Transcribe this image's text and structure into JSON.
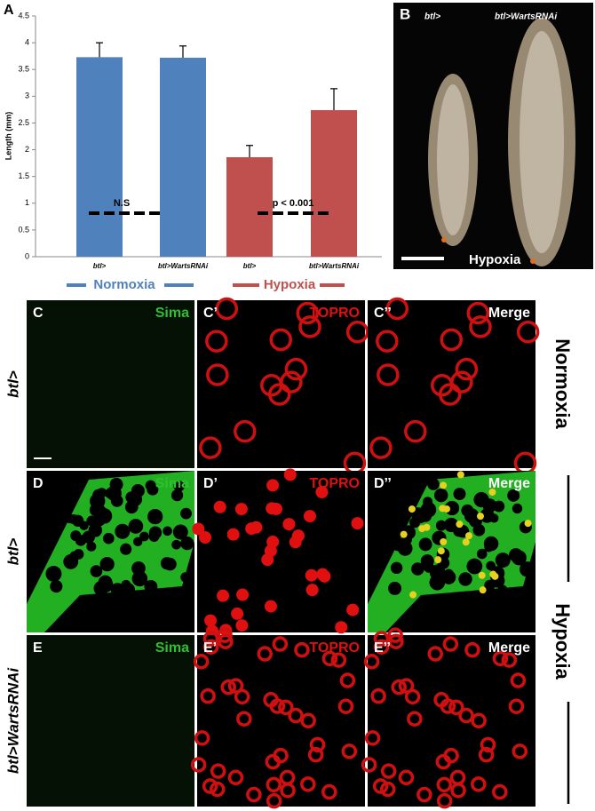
{
  "chart_data": {
    "type": "bar",
    "panel_label": "A",
    "y_label": "Length (mm)",
    "categories": [
      "btl>",
      "btl>WartsRNAi",
      "btl>",
      "btl>WartsRNAi"
    ],
    "values": [
      3.73,
      3.72,
      1.86,
      2.74
    ],
    "errors": [
      0.27,
      0.22,
      0.22,
      0.4
    ],
    "colors": [
      "#4f81bd",
      "#4f81bd",
      "#c0504d",
      "#c0504d"
    ],
    "groups": [
      {
        "name": "Normoxia",
        "color": "#4f81bd"
      },
      {
        "name": "Hypoxia",
        "color": "#c0504d"
      }
    ],
    "annotations": [
      "N.S",
      "p < 0.001"
    ],
    "ylim": [
      0,
      4.5
    ],
    "yticks": [
      0,
      0.5,
      1,
      1.5,
      2,
      2.5,
      3,
      3.5,
      4,
      4.5
    ]
  },
  "panel_b": {
    "label": "B",
    "left": "btl>",
    "right": "btl>WartsRNAi",
    "condition": "Hypoxia"
  },
  "grid": {
    "rows": [
      {
        "genotype": "btl>",
        "panels": [
          {
            "label": "C",
            "channel": "Sima"
          },
          {
            "label": "C’",
            "channel": "TOPRO"
          },
          {
            "label": "C’’",
            "channel": "Merge"
          }
        ]
      },
      {
        "genotype": "btl>",
        "panels": [
          {
            "label": "D",
            "channel": "Sima"
          },
          {
            "label": "D’",
            "channel": "TOPRO"
          },
          {
            "label": "D’’",
            "channel": "Merge"
          }
        ]
      },
      {
        "genotype": "btl>WartsRNAi",
        "panels": [
          {
            "label": "E",
            "channel": "Sima"
          },
          {
            "label": "E’",
            "channel": "TOPRO"
          },
          {
            "label": "E’’",
            "channel": "Merge"
          }
        ]
      }
    ],
    "conditions": [
      "Normoxia",
      "Hypoxia"
    ]
  }
}
